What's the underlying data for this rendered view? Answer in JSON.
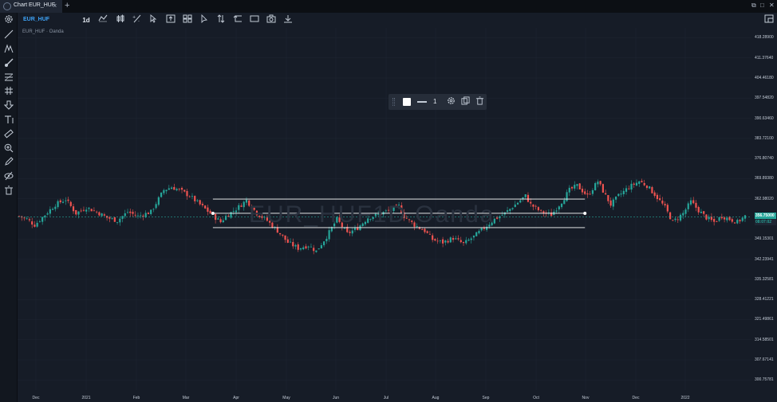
{
  "window": {
    "tab_title": "Chart EUR_HUF",
    "tab_close": "×",
    "tab_add": "+",
    "restore": "⧉",
    "maximize": "□",
    "close": "✕"
  },
  "toolbar": {
    "symbol": "EUR_HUF",
    "interval": "1d",
    "icons": [
      "indicator-icon",
      "candles-icon",
      "compare-icon",
      "cursor-icon",
      "template-icon",
      "layout-icon",
      "pointer-icon",
      "sort-icon",
      "replay-icon",
      "rectangle-icon",
      "screenshot-icon",
      "download-icon"
    ],
    "right_icon": "window-icon"
  },
  "sidebar": {
    "tools": [
      "settings-icon",
      "trend-line-icon",
      "pitchfork-icon",
      "brush-icon",
      "fib-icon",
      "gann-icon",
      "arrow-down-icon",
      "text-icon",
      "ruler-icon",
      "zoom-in-icon",
      "pencil-icon",
      "hide-icon",
      "trash-icon"
    ]
  },
  "chart": {
    "label": "EUR_HUF · Oanda",
    "watermark": "EUR_HUF1D Oanda",
    "price_now": "356.75000",
    "price_timer": "08:07:02",
    "colors": {
      "up": "#26a69a",
      "down": "#ef5350",
      "grid": "#1f2633",
      "drawing": "#ffffff"
    }
  },
  "chart_data": {
    "type": "candlestick",
    "symbol": "EUR_HUF",
    "source": "Oanda",
    "interval": "1d",
    "x_ticks": [
      "Dec",
      "2021",
      "Feb",
      "Mar",
      "Apr",
      "May",
      "Jun",
      "Jul",
      "Aug",
      "Sep",
      "Oct",
      "Nov",
      "Dec",
      "2022"
    ],
    "y_ticks": [
      "418.28900",
      "411.37640",
      "404.46180",
      "397.54820",
      "390.63460",
      "383.72100",
      "376.80740",
      "369.89380",
      "362.98020",
      "356.06660",
      "349.15301",
      "342.23941",
      "335.32581",
      "328.41221",
      "321.49861",
      "314.58501",
      "307.67141",
      "300.75781"
    ],
    "ylim": [
      297.3,
      421.7
    ],
    "last_price": 356.75,
    "close_path": [
      [
        0,
        357.0
      ],
      [
        3,
        356.0
      ],
      [
        6,
        354.0
      ],
      [
        10,
        357.5
      ],
      [
        14,
        361.0
      ],
      [
        18,
        362.8
      ],
      [
        22,
        358.0
      ],
      [
        26,
        360.0
      ],
      [
        30,
        358.5
      ],
      [
        34,
        356.5
      ],
      [
        38,
        355.5
      ],
      [
        42,
        358.5
      ],
      [
        46,
        357.0
      ],
      [
        51,
        358.5
      ],
      [
        56,
        366.0
      ],
      [
        59,
        367.0
      ],
      [
        62,
        366.0
      ],
      [
        66,
        364.0
      ],
      [
        70,
        361.0
      ],
      [
        74,
        358.0
      ],
      [
        78,
        355.0
      ],
      [
        80,
        357.0
      ],
      [
        84,
        359.5
      ],
      [
        88,
        362.5
      ],
      [
        92,
        358.0
      ],
      [
        96,
        355.5
      ],
      [
        100,
        352.0
      ],
      [
        104,
        348.0
      ],
      [
        108,
        346.0
      ],
      [
        112,
        347.0
      ],
      [
        115,
        345.0
      ],
      [
        119,
        350.0
      ],
      [
        123,
        356.0
      ],
      [
        127,
        351.0
      ],
      [
        131,
        353.0
      ],
      [
        135,
        356.5
      ],
      [
        139,
        357.5
      ],
      [
        143,
        359.0
      ],
      [
        147,
        360.5
      ],
      [
        149,
        357.0
      ],
      [
        153,
        354.0
      ],
      [
        157,
        352.0
      ],
      [
        160,
        349.0
      ],
      [
        164,
        348.0
      ],
      [
        168,
        349.5
      ],
      [
        172,
        347.5
      ],
      [
        176,
        350.0
      ],
      [
        180,
        353.0
      ],
      [
        184,
        356.0
      ],
      [
        188,
        358.0
      ],
      [
        192,
        361.0
      ],
      [
        196,
        364.0
      ],
      [
        198,
        361.0
      ],
      [
        202,
        358.5
      ],
      [
        206,
        357.5
      ],
      [
        210,
        362.0
      ],
      [
        213,
        366.0
      ],
      [
        216,
        367.5
      ],
      [
        220,
        364.0
      ],
      [
        224,
        369.0
      ],
      [
        227,
        364.0
      ],
      [
        229,
        361.0
      ],
      [
        232,
        364.0
      ],
      [
        236,
        367.0
      ],
      [
        240,
        369.0
      ],
      [
        243,
        367.5
      ],
      [
        246,
        364.5
      ],
      [
        250,
        360.0
      ],
      [
        253,
        355.0
      ],
      [
        257,
        358.0
      ],
      [
        260,
        362.0
      ],
      [
        263,
        359.0
      ],
      [
        266,
        356.5
      ],
      [
        269,
        355.0
      ],
      [
        272,
        357.0
      ],
      [
        275,
        356.0
      ],
      [
        278,
        355.0
      ],
      [
        281,
        357.0
      ]
    ],
    "drawing": {
      "type": "parallel-channel",
      "x_range": [
        75,
        219
      ],
      "middle": 358.0,
      "upper": 362.9,
      "lower": 353.1
    }
  }
}
